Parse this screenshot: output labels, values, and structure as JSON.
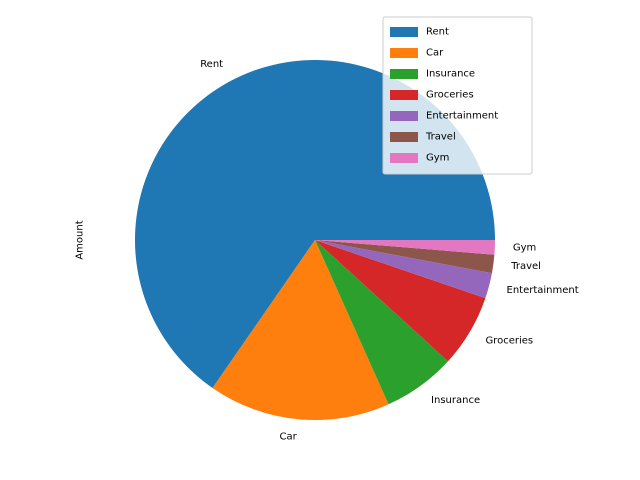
{
  "chart_data": {
    "type": "pie",
    "ylabel": "Amount",
    "categories": [
      "Rent",
      "Car",
      "Insurance",
      "Groceries",
      "Entertainment",
      "Travel",
      "Gym"
    ],
    "values": [
      2000,
      500,
      200,
      200,
      70,
      50,
      40
    ],
    "colors": [
      "#1f77b4",
      "#ff7f0e",
      "#2ca02c",
      "#d62728",
      "#9467bd",
      "#8c564b",
      "#e377c2"
    ],
    "start_angle_deg": 0,
    "direction": "counterclockwise",
    "legend": {
      "position": "top-right",
      "entries": [
        "Rent",
        "Car",
        "Insurance",
        "Groceries",
        "Entertainment",
        "Travel",
        "Gym"
      ]
    }
  }
}
